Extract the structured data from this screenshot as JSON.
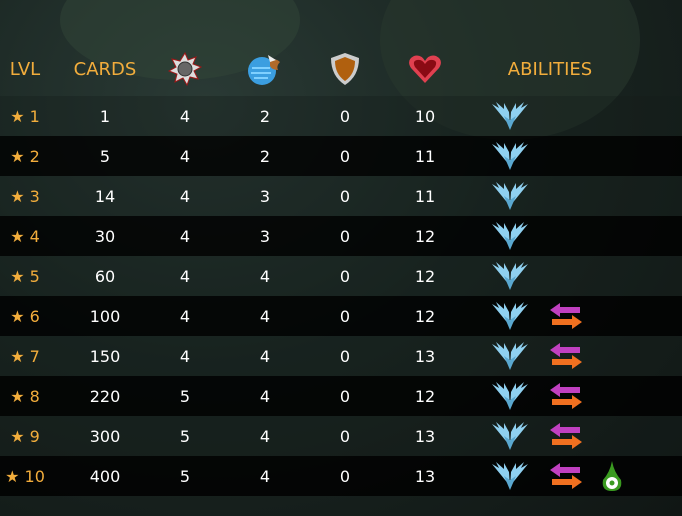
{
  "header": {
    "lvl": "LVL",
    "cards": "CARDS",
    "attack_icon": "melee-saw-icon",
    "magic_icon": "speed-orb-icon",
    "armor_icon": "shield-icon",
    "health_icon": "heart-icon",
    "abilities": "ABILITIES"
  },
  "star": "★",
  "rows": [
    {
      "lvl": "1",
      "cards": "1",
      "attack": "4",
      "magic": "2",
      "armor": "0",
      "health": "10",
      "abilities": [
        "flying"
      ]
    },
    {
      "lvl": "2",
      "cards": "5",
      "attack": "4",
      "magic": "2",
      "armor": "0",
      "health": "11",
      "abilities": [
        "flying"
      ]
    },
    {
      "lvl": "3",
      "cards": "14",
      "attack": "4",
      "magic": "3",
      "armor": "0",
      "health": "11",
      "abilities": [
        "flying"
      ]
    },
    {
      "lvl": "4",
      "cards": "30",
      "attack": "4",
      "magic": "3",
      "armor": "0",
      "health": "12",
      "abilities": [
        "flying"
      ]
    },
    {
      "lvl": "5",
      "cards": "60",
      "attack": "4",
      "magic": "4",
      "armor": "0",
      "health": "12",
      "abilities": [
        "flying"
      ]
    },
    {
      "lvl": "6",
      "cards": "100",
      "attack": "4",
      "magic": "4",
      "armor": "0",
      "health": "12",
      "abilities": [
        "flying",
        "swap-arrows"
      ]
    },
    {
      "lvl": "7",
      "cards": "150",
      "attack": "4",
      "magic": "4",
      "armor": "0",
      "health": "13",
      "abilities": [
        "flying",
        "swap-arrows"
      ]
    },
    {
      "lvl": "8",
      "cards": "220",
      "attack": "5",
      "magic": "4",
      "armor": "0",
      "health": "12",
      "abilities": [
        "flying",
        "swap-arrows"
      ]
    },
    {
      "lvl": "9",
      "cards": "300",
      "attack": "5",
      "magic": "4",
      "armor": "0",
      "health": "13",
      "abilities": [
        "flying",
        "swap-arrows"
      ]
    },
    {
      "lvl": "10",
      "cards": "400",
      "attack": "5",
      "magic": "4",
      "armor": "0",
      "health": "13",
      "abilities": [
        "flying",
        "swap-arrows",
        "poison"
      ]
    }
  ],
  "colors": {
    "header_text": "#f2ad3c",
    "body_text": "#ffffff",
    "row_dark": "#000000"
  }
}
